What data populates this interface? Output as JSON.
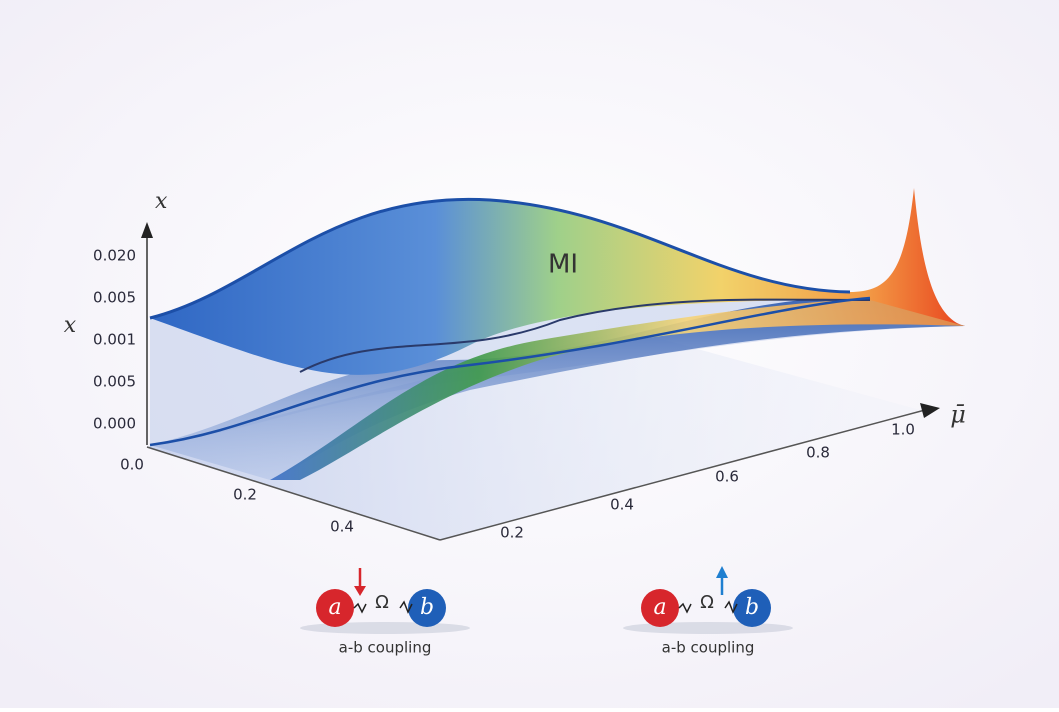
{
  "axes": {
    "vertical": {
      "label": "x",
      "ticks": [
        "0.020",
        "0.005",
        "0.001",
        "0.005",
        "0.000"
      ]
    },
    "side_label": "x",
    "depth": {
      "ticks": [
        "0.0",
        "0.2",
        "0.4"
      ]
    },
    "mu": {
      "label": "μ̄",
      "ticks": [
        "0.2",
        "0.4",
        "0.6",
        "0.8",
        "1.0"
      ]
    }
  },
  "surface_label": "MI",
  "couplings": [
    {
      "left": "a",
      "link": "Ω",
      "right": "b",
      "caption": "a-b coupling"
    },
    {
      "left": "a",
      "link": "Ω",
      "right": "b",
      "caption": "a-b coupling"
    }
  ]
}
